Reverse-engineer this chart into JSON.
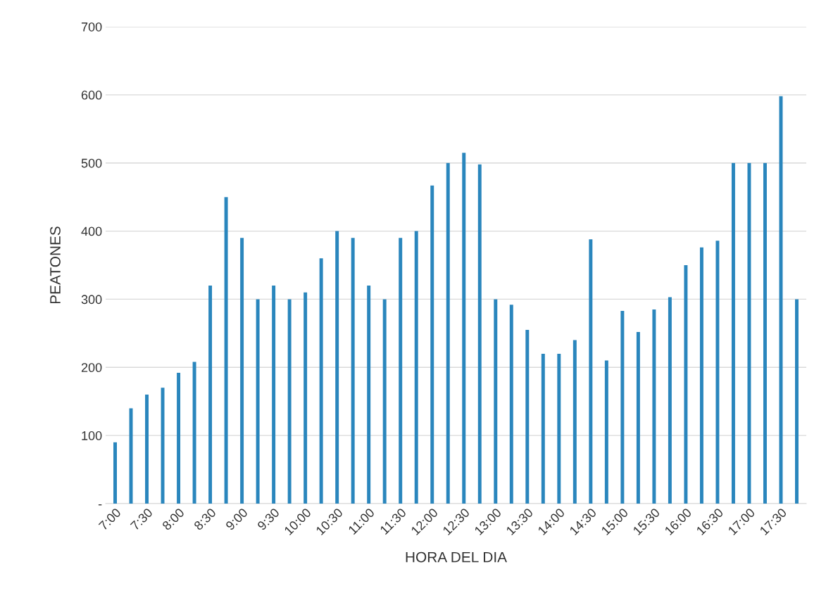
{
  "chart_data": {
    "type": "bar",
    "xlabel": "HORA DEL DIA",
    "ylabel": "PEATONES",
    "categories": [
      "7:00",
      null,
      "7:30",
      null,
      "8:00",
      null,
      "8:30",
      null,
      "9:00",
      null,
      "9:30",
      null,
      "10:00",
      null,
      "10:30",
      null,
      "11:00",
      null,
      "11:30",
      null,
      "12:00",
      null,
      "12:30",
      null,
      "13:00",
      null,
      "13:30",
      null,
      "14:00",
      null,
      "14:30",
      null,
      "15:00",
      null,
      "15:30",
      null,
      "16:00",
      null,
      "16:30",
      null,
      "17:00",
      null,
      "17:30",
      null
    ],
    "values": [
      90,
      140,
      160,
      170,
      192,
      208,
      320,
      450,
      390,
      300,
      320,
      300,
      310,
      360,
      400,
      390,
      320,
      300,
      390,
      400,
      467,
      500,
      515,
      498,
      300,
      292,
      255,
      220,
      220,
      240,
      388,
      210,
      283,
      252,
      285,
      303,
      350,
      376,
      386,
      500,
      500,
      500,
      598,
      300
    ],
    "color": "#2a86bd",
    "ylim": [
      0,
      700
    ],
    "yticks": [
      {
        "value": 0,
        "label": "-"
      },
      100,
      200,
      300,
      400,
      500,
      600,
      700
    ],
    "grid": "y"
  }
}
